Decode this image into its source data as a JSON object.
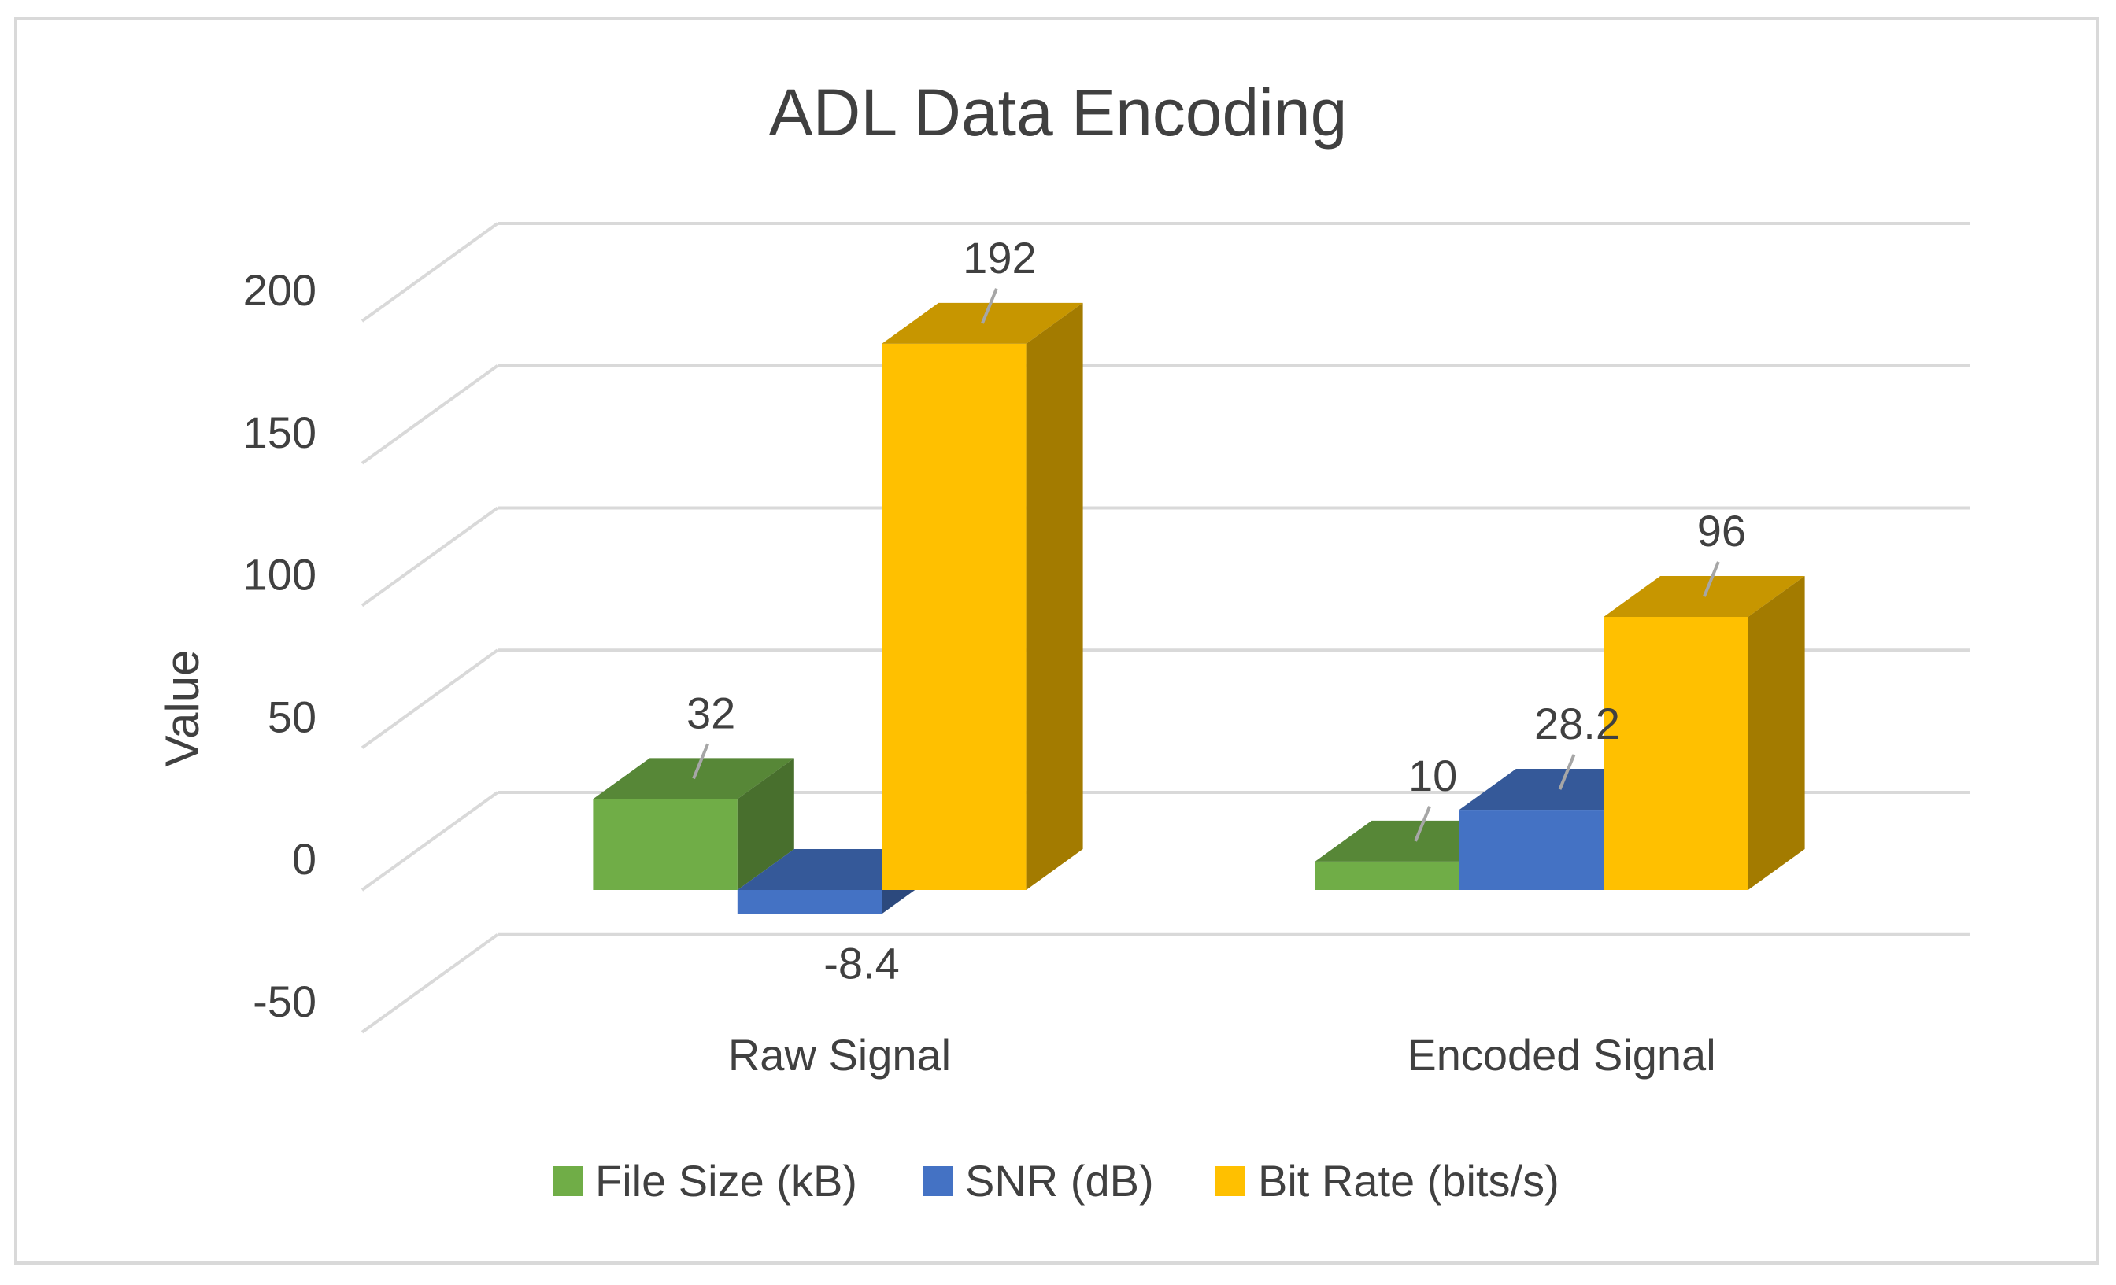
{
  "chart_data": {
    "type": "bar",
    "style": "3d-clustered-column",
    "title": "ADL Data Encoding",
    "xlabel": "",
    "ylabel": "Value",
    "ylim": [
      -50,
      200
    ],
    "yticks": [
      -50,
      0,
      50,
      100,
      150,
      200
    ],
    "categories": [
      "Raw Signal",
      "Encoded Signal"
    ],
    "series": [
      {
        "name": "File Size (kB)",
        "values": [
          32,
          10
        ],
        "labels": [
          "32",
          "10"
        ],
        "color": "#70ad47"
      },
      {
        "name": "SNR (dB)",
        "values": [
          -8.4,
          28.2
        ],
        "labels": [
          "-8.4",
          "28.2"
        ],
        "color": "#4472c4"
      },
      {
        "name": "Bit Rate (bits/s)",
        "values": [
          192,
          96
        ],
        "labels": [
          "192",
          "96"
        ],
        "color": "#ffc000"
      }
    ],
    "grid": true,
    "legend": "bottom"
  }
}
